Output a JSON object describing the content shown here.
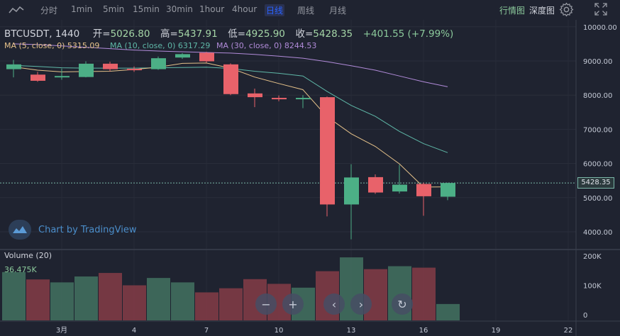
{
  "toolbar": {
    "intervals": [
      "分时",
      "1min",
      "5min",
      "15min",
      "30min",
      "1hour",
      "4hour",
      "日线",
      "周线",
      "月线"
    ],
    "active_interval": "日线",
    "right_tabs": [
      "行情图",
      "深度图"
    ],
    "active_right_tab": "行情图",
    "icons": [
      "line-chart-icon",
      "gear-icon",
      "fullscreen-icon"
    ]
  },
  "legend": {
    "symbol": "BTCUSDT, 1440",
    "open_label": "开=",
    "open": "5026.80",
    "high_label": "高=",
    "high": "5437.91",
    "low_label": "低=",
    "low": "4925.90",
    "close_label": "收=",
    "close": "5428.35",
    "change": "+401.55 (+7.99%)"
  },
  "ma": [
    {
      "label": "MA (5, close, 0)",
      "value": "5315.09",
      "color": "#e6c28a"
    },
    {
      "label": "MA (10, close, 0)",
      "value": "6317.29",
      "color": "#5fb8a8"
    },
    {
      "label": "MA (30, close, 0)",
      "value": "8244.53",
      "color": "#b18bd9"
    }
  ],
  "watermark": {
    "text": "Chart by TradingView"
  },
  "volume": {
    "label": "Volume (20)",
    "value": "36.475K"
  },
  "price_axis": {
    "ticks": [
      "10000.00",
      "9000.00",
      "8000.00",
      "7000.00",
      "6000.00",
      "5000.00",
      "4000.00"
    ],
    "last_price": "5428.35"
  },
  "volume_axis": {
    "ticks": [
      "200K",
      "100K",
      "0"
    ]
  },
  "time_axis": {
    "ticks": [
      "3月",
      "4",
      "7",
      "10",
      "13",
      "16",
      "19",
      "22"
    ]
  },
  "colors": {
    "up": "#4caf86",
    "down": "#e8626a",
    "background": "#1f2330",
    "active": "#2962ff"
  },
  "chart_data": {
    "type": "candlestick",
    "ylim": [
      3600,
      10100
    ],
    "candles": [
      {
        "o": 8760,
        "c": 8900,
        "h": 9030,
        "l": 8520
      },
      {
        "o": 8600,
        "c": 8420,
        "h": 8680,
        "l": 8390
      },
      {
        "o": 8540,
        "c": 8560,
        "h": 8780,
        "l": 8450
      },
      {
        "o": 8530,
        "c": 8920,
        "h": 8990,
        "l": 8520
      },
      {
        "o": 8920,
        "c": 8760,
        "h": 8980,
        "l": 8700
      },
      {
        "o": 8770,
        "c": 8740,
        "h": 8840,
        "l": 8680
      },
      {
        "o": 8760,
        "c": 9080,
        "h": 9130,
        "l": 8740
      },
      {
        "o": 9100,
        "c": 9200,
        "h": 9230,
        "l": 9060
      },
      {
        "o": 9240,
        "c": 8990,
        "h": 9270,
        "l": 8950
      },
      {
        "o": 8900,
        "c": 8030,
        "h": 8930,
        "l": 8000
      },
      {
        "o": 8050,
        "c": 7940,
        "h": 8190,
        "l": 7650
      },
      {
        "o": 7920,
        "c": 7900,
        "h": 7990,
        "l": 7820
      },
      {
        "o": 7880,
        "c": 7920,
        "h": 8000,
        "l": 7620
      },
      {
        "o": 7940,
        "c": 4800,
        "h": 7960,
        "l": 4450
      },
      {
        "o": 4800,
        "c": 5590,
        "h": 5980,
        "l": 3780
      },
      {
        "o": 5600,
        "c": 5150,
        "h": 5680,
        "l": 5110
      },
      {
        "o": 5180,
        "c": 5380,
        "h": 5960,
        "l": 5120
      },
      {
        "o": 5400,
        "c": 5040,
        "h": 5440,
        "l": 4470
      },
      {
        "o": 5026.8,
        "c": 5428.35,
        "h": 5437.91,
        "l": 4925.9
      }
    ],
    "ma5": [
      8830,
      8730,
      8680,
      8690,
      8700,
      8750,
      8820,
      8930,
      8940,
      8790,
      8530,
      8340,
      8160,
      7370,
      6870,
      6500,
      5990,
      5310,
      5315.09
    ],
    "ma10": [
      8870,
      8840,
      8800,
      8790,
      8790,
      8790,
      8800,
      8810,
      8820,
      8780,
      8700,
      8640,
      8560,
      8110,
      7700,
      7380,
      6940,
      6580,
      6317.29
    ],
    "ma30": [
      9500,
      9480,
      9440,
      9400,
      9360,
      9320,
      9290,
      9270,
      9250,
      9230,
      9190,
      9140,
      9080,
      8980,
      8860,
      8730,
      8560,
      8390,
      8244.53
    ],
    "vol_ylim": [
      0,
      210
    ],
    "volumes": [
      145,
      120,
      110,
      130,
      142,
      100,
      125,
      110,
      76,
      90,
      121,
      105,
      92,
      148,
      195,
      155,
      165,
      160,
      36.475
    ]
  }
}
